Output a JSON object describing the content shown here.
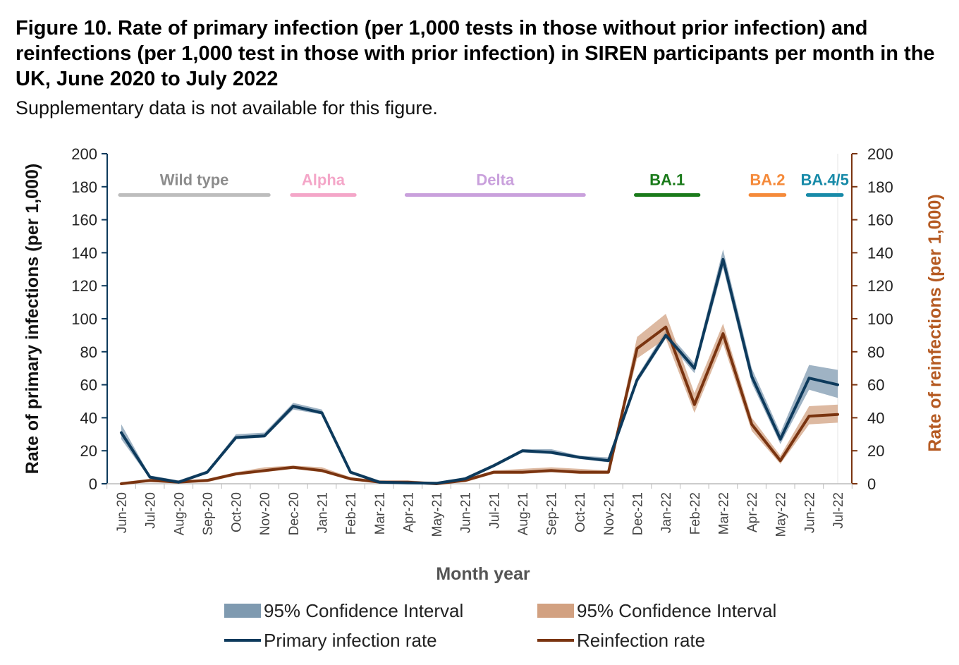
{
  "title": "Figure 10. Rate of primary infection (per 1,000 tests in those without prior infection) and reinfections (per 1,000 test in those with prior infection) in SIREN participants per month in the UK, June 2020 to July 2022",
  "subtitle": "Supplementary data is not available for this figure.",
  "chart_data": {
    "type": "line",
    "xlabel": "Month year",
    "ylabel_left": "Rate of primary infections (per 1,000)",
    "ylabel_right": "Rate of reinfections (per 1,000)",
    "ylim": [
      0,
      200
    ],
    "yticks": [
      0,
      20,
      40,
      60,
      80,
      100,
      120,
      140,
      160,
      180,
      200
    ],
    "categories": [
      "Jun-20",
      "Jul-20",
      "Aug-20",
      "Sep-20",
      "Oct-20",
      "Nov-20",
      "Dec-20",
      "Jan-21",
      "Feb-21",
      "Mar-21",
      "Apr-21",
      "May-21",
      "Jun-21",
      "Jul-21",
      "Aug-21",
      "Sep-21",
      "Oct-21",
      "Nov-21",
      "Dec-21",
      "Jan-22",
      "Feb-22",
      "Mar-22",
      "Apr-22",
      "May-22",
      "Jun-22",
      "Jul-22"
    ],
    "series": [
      {
        "name": "Primary infection rate",
        "axis": "left",
        "color": "#0d3a5c",
        "values": [
          31,
          4,
          1,
          7,
          28,
          29,
          47,
          43,
          7,
          1,
          0.5,
          0.3,
          3,
          11,
          20,
          19,
          16,
          14,
          63,
          90,
          70,
          136,
          65,
          27,
          64,
          60
        ],
        "ci_lower": [
          27,
          3,
          0.5,
          6,
          27,
          28,
          45,
          42,
          6,
          0.5,
          0.2,
          0.1,
          2,
          10,
          19,
          18,
          15,
          13,
          61,
          88,
          67,
          131,
          61,
          24,
          57,
          52
        ],
        "ci_upper": [
          36,
          5,
          2,
          8,
          30,
          31,
          49,
          45,
          8,
          2,
          1,
          0.6,
          4,
          12,
          21,
          21,
          17,
          16,
          65,
          93,
          73,
          142,
          70,
          31,
          72,
          69
        ]
      },
      {
        "name": "Reinfection rate",
        "axis": "right",
        "color": "#7a3410",
        "values": [
          0,
          2,
          1,
          2,
          6,
          8,
          10,
          8,
          3,
          1,
          1,
          0,
          2,
          7,
          7,
          8,
          7,
          7,
          82,
          95,
          48,
          91,
          36,
          14,
          41,
          42
        ],
        "ci_lower": [
          0,
          1,
          0.5,
          1,
          5,
          7,
          9,
          7,
          2,
          0.5,
          0.5,
          0,
          1,
          6,
          6,
          7,
          6,
          6,
          76,
          88,
          43,
          85,
          32,
          12,
          36,
          37
        ],
        "ci_upper": [
          1,
          3,
          2,
          3,
          7,
          10,
          11,
          10,
          4,
          2,
          2,
          1,
          3,
          8,
          9,
          10,
          9,
          8,
          89,
          103,
          55,
          97,
          40,
          17,
          47,
          48
        ]
      }
    ],
    "variants": [
      {
        "name": "Wild type",
        "color": "#bdbdbd",
        "text_color": "#8c8c8c",
        "from": "Jun-20",
        "to": "Nov-20"
      },
      {
        "name": "Alpha",
        "color": "#f4a6c8",
        "text_color": "#f4a6c8",
        "from": "Dec-20",
        "to": "Feb-21"
      },
      {
        "name": "Delta",
        "color": "#c9a0dc",
        "text_color": "#c9a0dc",
        "from": "Apr-21",
        "to": "Oct-21"
      },
      {
        "name": "BA.1",
        "color": "#1a7a1a",
        "text_color": "#1a7a1a",
        "from": "Dec-21",
        "to": "Feb-22"
      },
      {
        "name": "BA.2",
        "color": "#f58a3a",
        "text_color": "#f58a3a",
        "from": "Apr-22",
        "to": "May-22"
      },
      {
        "name": "BA.4/5",
        "color": "#178aa8",
        "text_color": "#178aa8",
        "from": "Jun-22",
        "to": "Jul-22"
      }
    ],
    "legend": [
      {
        "label": "95% Confidence Interval",
        "kind": "band",
        "color": "#7f9ab0"
      },
      {
        "label": "95% Confidence Interval",
        "kind": "band",
        "color": "#d2a181"
      },
      {
        "label": "Primary infection rate",
        "kind": "line",
        "color": "#0d3a5c"
      },
      {
        "label": "Reinfection rate",
        "kind": "line",
        "color": "#7a3410"
      }
    ],
    "legend_position": "bottom",
    "colors": {
      "left_axis": "#0d3a5c",
      "right_axis": "#7a3410",
      "primary_band": "#7f9ab0",
      "reinfection_band": "#d2a181"
    }
  }
}
